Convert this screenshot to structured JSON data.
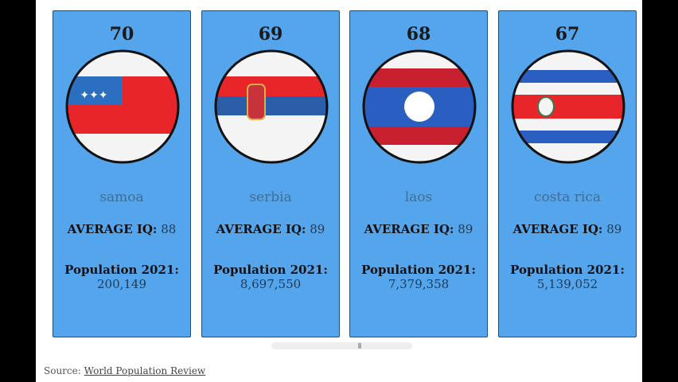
{
  "cards": [
    {
      "rank": "70",
      "name": "samoa",
      "iq_label": "AVERAGE IQ:",
      "iq": "88",
      "pop_label": "Population 2021:",
      "pop": "200,149",
      "flag": "samoa-flag"
    },
    {
      "rank": "69",
      "name": "serbia",
      "iq_label": "AVERAGE IQ:",
      "iq": "89",
      "pop_label": "Population 2021:",
      "pop": "8,697,550",
      "flag": "serbia-flag"
    },
    {
      "rank": "68",
      "name": "laos",
      "iq_label": "AVERAGE IQ:",
      "iq": "89",
      "pop_label": "Population 2021:",
      "pop": "7,379,358",
      "flag": "laos-flag"
    },
    {
      "rank": "67",
      "name": "costa rica",
      "iq_label": "AVERAGE IQ:",
      "iq": "89",
      "pop_label": "Population 2021:",
      "pop": "5,139,052",
      "flag": "costa-rica-flag"
    }
  ],
  "source": {
    "label": "Source:",
    "link": "World Population Review"
  },
  "colors": {
    "card": "#55a5ec",
    "red": "#e8262a",
    "blue": "#2a6fc0"
  }
}
